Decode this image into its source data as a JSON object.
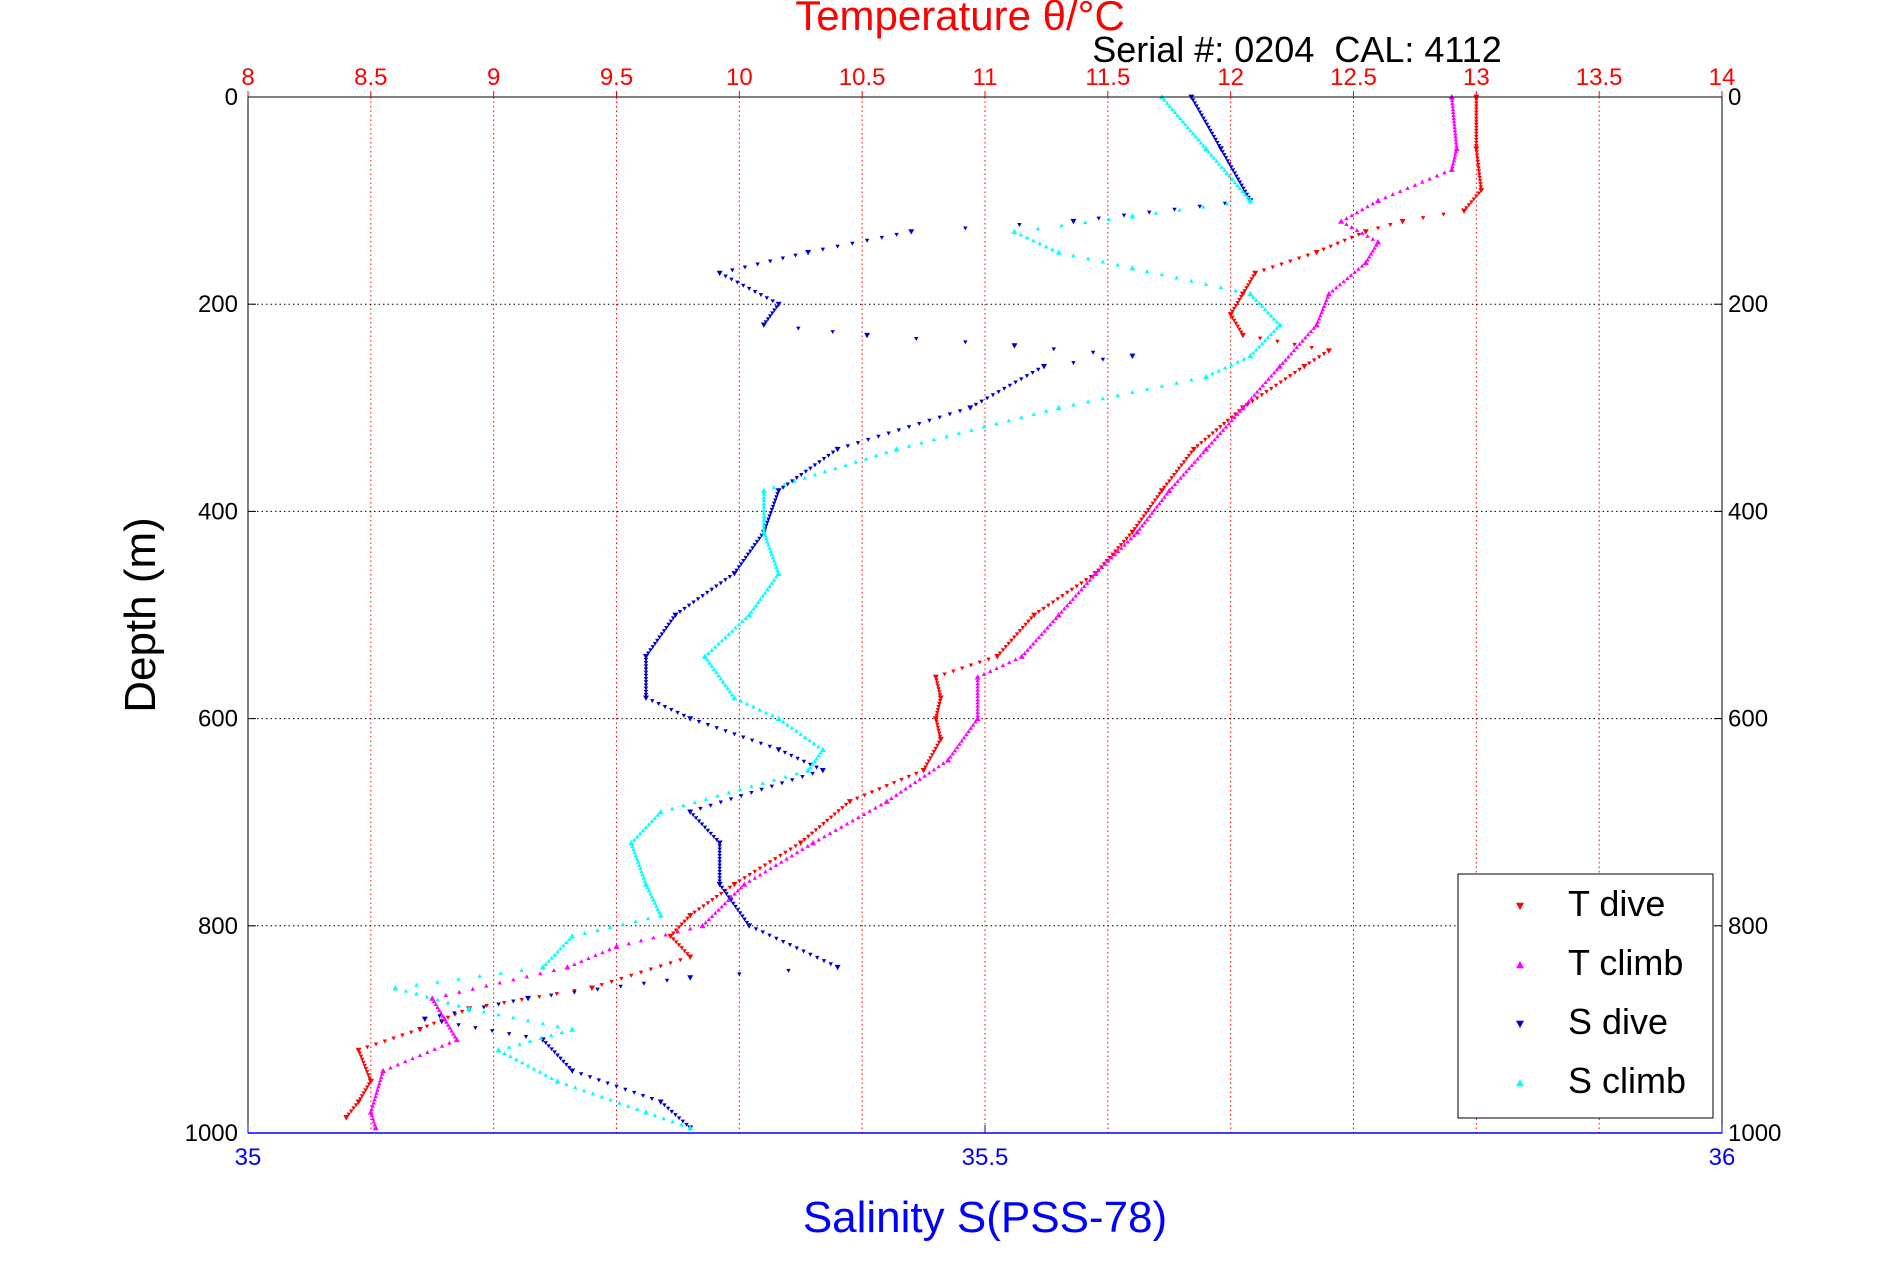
{
  "chart_data": {
    "type": "scatter",
    "title": "Temperature θ/°C",
    "subtitle": "Serial #: 0204  CAL: 4112",
    "ylabel": "Depth (m)",
    "xlabel_bottom": "Salinity S(PSS-78)",
    "x_top": {
      "label": "Temperature θ/°C",
      "lim": [
        8,
        14
      ],
      "ticks": [
        "8",
        "8.5",
        "9",
        "9.5",
        "10",
        "10.5",
        "11",
        "11.5",
        "12",
        "12.5",
        "13",
        "13.5",
        "14"
      ]
    },
    "x_bottom": {
      "label": "Salinity S(PSS-78)",
      "lim": [
        35,
        36
      ],
      "ticks": [
        "35",
        "35.5",
        "36"
      ]
    },
    "y": {
      "lim": [
        0,
        1000
      ],
      "reversed": true,
      "ticks": [
        "0",
        "200",
        "400",
        "600",
        "800",
        "1000"
      ]
    },
    "grid": true,
    "legend": {
      "position": "bottom-right"
    },
    "colors": {
      "t_axis": "#ff0000",
      "s_axis": "#0000ff",
      "t_dive": "#ff0000",
      "t_climb": "#ff00ff",
      "s_dive": "#0000cc",
      "s_climb": "#00ffff"
    },
    "series": [
      {
        "name": "T dive",
        "axis": "temperature",
        "marker": "triangle-down",
        "color": "#ff0000",
        "points": [
          [
            0,
            13.0
          ],
          [
            50,
            13.0
          ],
          [
            90,
            13.02
          ],
          [
            110,
            12.95
          ],
          [
            120,
            12.7
          ],
          [
            130,
            12.55
          ],
          [
            150,
            12.35
          ],
          [
            170,
            12.1
          ],
          [
            190,
            12.05
          ],
          [
            210,
            12.0
          ],
          [
            230,
            12.05
          ],
          [
            245,
            12.4
          ],
          [
            260,
            12.3
          ],
          [
            300,
            12.05
          ],
          [
            340,
            11.85
          ],
          [
            380,
            11.72
          ],
          [
            420,
            11.6
          ],
          [
            460,
            11.45
          ],
          [
            500,
            11.2
          ],
          [
            540,
            11.05
          ],
          [
            560,
            10.8
          ],
          [
            580,
            10.82
          ],
          [
            600,
            10.8
          ],
          [
            620,
            10.82
          ],
          [
            650,
            10.75
          ],
          [
            680,
            10.45
          ],
          [
            720,
            10.25
          ],
          [
            760,
            9.98
          ],
          [
            790,
            9.8
          ],
          [
            810,
            9.72
          ],
          [
            830,
            9.8
          ],
          [
            860,
            9.4
          ],
          [
            880,
            8.9
          ],
          [
            900,
            8.7
          ],
          [
            920,
            8.45
          ],
          [
            950,
            8.5
          ],
          [
            970,
            8.45
          ],
          [
            985,
            8.4
          ]
        ]
      },
      {
        "name": "T climb",
        "axis": "temperature",
        "marker": "triangle-up",
        "color": "#ff00ff",
        "points": [
          [
            0,
            12.9
          ],
          [
            50,
            12.92
          ],
          [
            70,
            12.9
          ],
          [
            100,
            12.6
          ],
          [
            120,
            12.45
          ],
          [
            140,
            12.6
          ],
          [
            160,
            12.55
          ],
          [
            190,
            12.4
          ],
          [
            220,
            12.35
          ],
          [
            260,
            12.2
          ],
          [
            300,
            12.05
          ],
          [
            340,
            11.9
          ],
          [
            380,
            11.75
          ],
          [
            420,
            11.62
          ],
          [
            460,
            11.45
          ],
          [
            500,
            11.3
          ],
          [
            540,
            11.15
          ],
          [
            560,
            10.97
          ],
          [
            600,
            10.97
          ],
          [
            640,
            10.85
          ],
          [
            680,
            10.6
          ],
          [
            720,
            10.3
          ],
          [
            760,
            10.02
          ],
          [
            800,
            9.85
          ],
          [
            820,
            9.5
          ],
          [
            840,
            9.3
          ],
          [
            870,
            8.75
          ],
          [
            890,
            8.8
          ],
          [
            910,
            8.85
          ],
          [
            940,
            8.55
          ],
          [
            980,
            8.5
          ],
          [
            995,
            8.52
          ]
        ]
      },
      {
        "name": "S dive",
        "axis": "salinity",
        "marker": "triangle-down",
        "color": "#0000cc",
        "points": [
          [
            0,
            35.64
          ],
          [
            50,
            35.66
          ],
          [
            100,
            35.68
          ],
          [
            120,
            35.56
          ],
          [
            130,
            35.45
          ],
          [
            150,
            35.38
          ],
          [
            170,
            35.32
          ],
          [
            200,
            35.36
          ],
          [
            220,
            35.35
          ],
          [
            230,
            35.42
          ],
          [
            240,
            35.52
          ],
          [
            250,
            35.6
          ],
          [
            260,
            35.54
          ],
          [
            300,
            35.49
          ],
          [
            340,
            35.4
          ],
          [
            380,
            35.36
          ],
          [
            420,
            35.35
          ],
          [
            460,
            35.33
          ],
          [
            500,
            35.29
          ],
          [
            540,
            35.27
          ],
          [
            580,
            35.27
          ],
          [
            600,
            35.3
          ],
          [
            630,
            35.36
          ],
          [
            650,
            35.39
          ],
          [
            690,
            35.3
          ],
          [
            720,
            35.32
          ],
          [
            760,
            35.32
          ],
          [
            800,
            35.34
          ],
          [
            840,
            35.4
          ],
          [
            850,
            35.3
          ],
          [
            870,
            35.19
          ],
          [
            890,
            35.12
          ],
          [
            910,
            35.2
          ],
          [
            940,
            35.22
          ],
          [
            970,
            35.28
          ],
          [
            995,
            35.3
          ]
        ]
      },
      {
        "name": "S climb",
        "axis": "salinity",
        "marker": "triangle-up",
        "color": "#00ffff",
        "points": [
          [
            0,
            35.62
          ],
          [
            50,
            35.65
          ],
          [
            100,
            35.68
          ],
          [
            115,
            35.6
          ],
          [
            130,
            35.52
          ],
          [
            150,
            35.55
          ],
          [
            165,
            35.6
          ],
          [
            190,
            35.68
          ],
          [
            220,
            35.7
          ],
          [
            250,
            35.68
          ],
          [
            270,
            35.65
          ],
          [
            300,
            35.55
          ],
          [
            340,
            35.44
          ],
          [
            380,
            35.35
          ],
          [
            420,
            35.35
          ],
          [
            460,
            35.36
          ],
          [
            500,
            35.34
          ],
          [
            540,
            35.31
          ],
          [
            580,
            35.33
          ],
          [
            600,
            35.36
          ],
          [
            630,
            35.39
          ],
          [
            650,
            35.38
          ],
          [
            690,
            35.28
          ],
          [
            720,
            35.26
          ],
          [
            760,
            35.27
          ],
          [
            790,
            35.28
          ],
          [
            810,
            35.22
          ],
          [
            840,
            35.2
          ],
          [
            860,
            35.1
          ],
          [
            880,
            35.15
          ],
          [
            900,
            35.22
          ],
          [
            920,
            35.17
          ],
          [
            950,
            35.21
          ],
          [
            980,
            35.27
          ],
          [
            995,
            35.3
          ]
        ]
      }
    ]
  }
}
